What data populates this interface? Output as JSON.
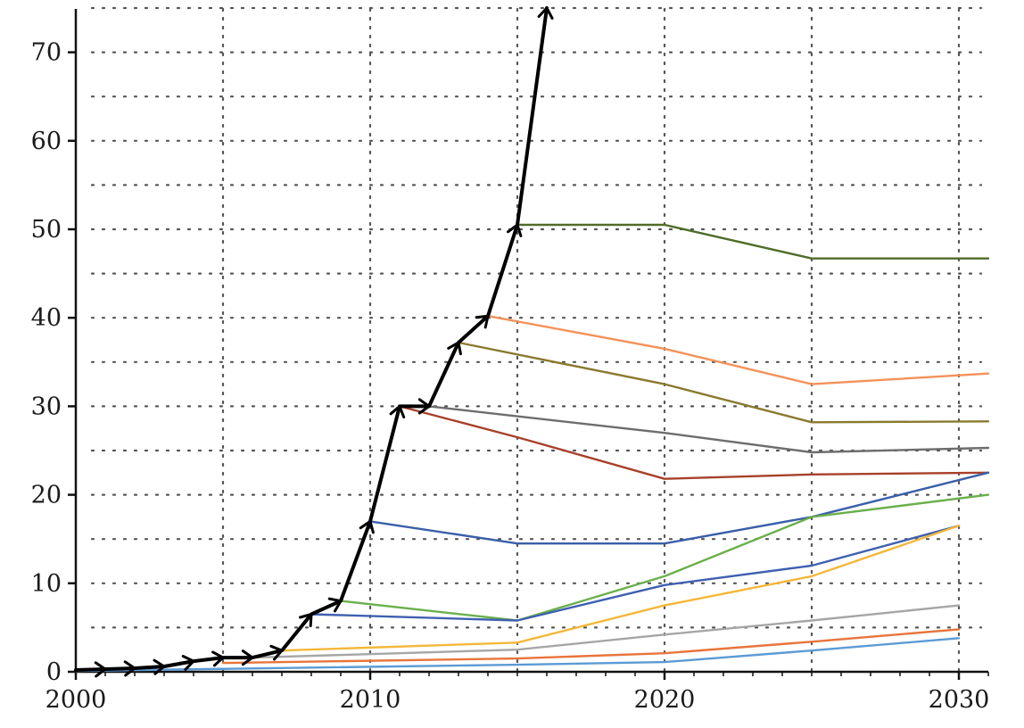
{
  "chart_data": {
    "type": "line",
    "title": "",
    "xlabel": "",
    "ylabel": "",
    "xlim": [
      2000,
      2031
    ],
    "ylim": [
      0,
      75
    ],
    "x_ticks": [
      "2000",
      "2010",
      "2020",
      "2030"
    ],
    "y_ticks": [
      "0",
      "10",
      "20",
      "30",
      "40",
      "50",
      "60",
      "70"
    ],
    "grid": {
      "vertical_dotted": true,
      "horizontal_dotted": true,
      "vertical_step": 5,
      "horizontal_step": 5
    },
    "legend": "none",
    "main_series": {
      "color": "#000000",
      "marker": "arrowhead",
      "points": [
        [
          2000,
          0.2
        ],
        [
          2001,
          0.3
        ],
        [
          2002,
          0.4
        ],
        [
          2003,
          0.6
        ],
        [
          2004,
          1.2
        ],
        [
          2005,
          1.6
        ],
        [
          2006,
          1.6
        ],
        [
          2007,
          2.4
        ],
        [
          2008,
          6.5
        ],
        [
          2009,
          8.0
        ],
        [
          2010,
          17.0
        ],
        [
          2011,
          30.0
        ],
        [
          2012,
          30.0
        ],
        [
          2013,
          37.2
        ],
        [
          2014,
          40.2
        ],
        [
          2015,
          50.5
        ],
        [
          2016,
          75.0
        ]
      ]
    },
    "series": [
      {
        "color": "#4f6d2a",
        "points": [
          [
            2015,
            50.5
          ],
          [
            2020,
            50.5
          ],
          [
            2025,
            46.7
          ],
          [
            2031,
            46.7
          ]
        ]
      },
      {
        "color": "#f4925a",
        "points": [
          [
            2014,
            40.2
          ],
          [
            2020,
            36.5
          ],
          [
            2025,
            32.5
          ],
          [
            2031,
            33.7
          ]
        ]
      },
      {
        "color": "#8a7a2e",
        "points": [
          [
            2013,
            37.2
          ],
          [
            2020,
            32.5
          ],
          [
            2025,
            28.2
          ],
          [
            2031,
            28.3
          ]
        ]
      },
      {
        "color": "#6d6d6d",
        "points": [
          [
            2012,
            30.0
          ],
          [
            2020,
            27.0
          ],
          [
            2025,
            24.8
          ],
          [
            2031,
            25.3
          ]
        ]
      },
      {
        "color": "#a8402a",
        "points": [
          [
            2011,
            30.0
          ],
          [
            2015,
            26.5
          ],
          [
            2020,
            21.8
          ],
          [
            2025,
            22.3
          ],
          [
            2031,
            22.5
          ]
        ]
      },
      {
        "color": "#3a5fa8",
        "points": [
          [
            2010,
            17.0
          ],
          [
            2015,
            14.5
          ],
          [
            2020,
            14.5
          ],
          [
            2025,
            17.5
          ],
          [
            2031,
            22.5
          ]
        ]
      },
      {
        "color": "#6ab04c",
        "points": [
          [
            2009,
            8.0
          ],
          [
            2015,
            5.8
          ],
          [
            2020,
            10.8
          ],
          [
            2025,
            17.5
          ],
          [
            2031,
            20.0
          ]
        ]
      },
      {
        "color": "#3f60b0",
        "points": [
          [
            2008,
            6.5
          ],
          [
            2015,
            5.8
          ],
          [
            2020,
            9.8
          ],
          [
            2025,
            12.0
          ],
          [
            2030,
            16.5
          ]
        ]
      },
      {
        "color": "#f3b83a",
        "points": [
          [
            2007,
            2.4
          ],
          [
            2015,
            3.3
          ],
          [
            2020,
            7.5
          ],
          [
            2025,
            10.8
          ],
          [
            2030,
            16.5
          ]
        ]
      },
      {
        "color": "#a6a6a6",
        "points": [
          [
            2006,
            1.6
          ],
          [
            2015,
            2.5
          ],
          [
            2020,
            4.2
          ],
          [
            2025,
            5.8
          ],
          [
            2030,
            7.5
          ]
        ]
      },
      {
        "color": "#e8743b",
        "points": [
          [
            2005,
            1.0
          ],
          [
            2015,
            1.5
          ],
          [
            2020,
            2.1
          ],
          [
            2025,
            3.4
          ],
          [
            2030,
            4.8
          ]
        ]
      },
      {
        "color": "#5b9bd5",
        "points": [
          [
            2000,
            0.1
          ],
          [
            2015,
            0.8
          ],
          [
            2020,
            1.1
          ],
          [
            2025,
            2.4
          ],
          [
            2030,
            3.8
          ]
        ]
      }
    ]
  }
}
